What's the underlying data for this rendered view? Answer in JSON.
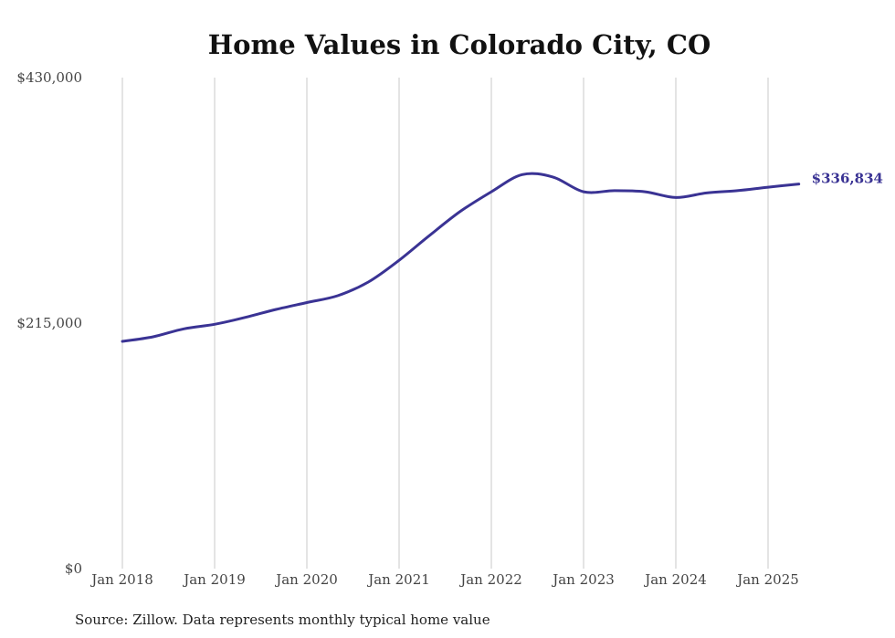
{
  "chart_data": {
    "type": "line",
    "title": "Home Values in Colorado City, CO",
    "xlabel": "",
    "ylabel": "",
    "source": "Source: Zillow. Data represents monthly typical home value",
    "ylim": [
      0,
      430000
    ],
    "y_ticks": [
      {
        "value": 0,
        "label": "$0"
      },
      {
        "value": 215000,
        "label": "$215,000"
      },
      {
        "value": 430000,
        "label": "$430,000"
      }
    ],
    "x_ticks": [
      {
        "value": "2018-01",
        "label": "Jan 2018"
      },
      {
        "value": "2019-01",
        "label": "Jan 2019"
      },
      {
        "value": "2020-01",
        "label": "Jan 2020"
      },
      {
        "value": "2021-01",
        "label": "Jan 2021"
      },
      {
        "value": "2022-01",
        "label": "Jan 2022"
      },
      {
        "value": "2023-01",
        "label": "Jan 2023"
      },
      {
        "value": "2024-01",
        "label": "Jan 2024"
      },
      {
        "value": "2025-01",
        "label": "Jan 2025"
      }
    ],
    "vertical_grid": true,
    "line_color": "#3a3394",
    "gridline_color": "#c8c8c8",
    "end_label": "$336,834",
    "series": [
      {
        "x": [
          "2018-01",
          "2018-05",
          "2018-09",
          "2019-01",
          "2019-05",
          "2019-09",
          "2020-01",
          "2020-05",
          "2020-09",
          "2021-01",
          "2021-05",
          "2021-09",
          "2022-01",
          "2022-05",
          "2022-09",
          "2023-01",
          "2023-05",
          "2023-09",
          "2024-01",
          "2024-05",
          "2024-09",
          "2025-01",
          "2025-05"
        ],
        "values": [
          199000,
          203000,
          210000,
          214000,
          220000,
          227000,
          233000,
          239000,
          251000,
          270000,
          292000,
          313000,
          330000,
          345000,
          343000,
          330000,
          331000,
          330000,
          325000,
          329000,
          331000,
          334000,
          336834
        ]
      }
    ]
  }
}
